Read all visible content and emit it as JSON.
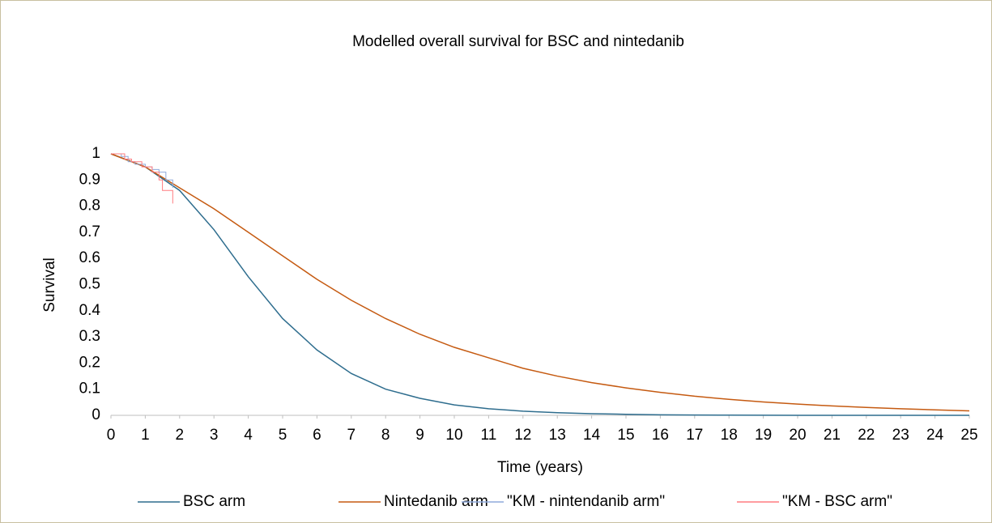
{
  "chart_data": {
    "type": "line",
    "title": "Modelled overall survival for BSC and nintedanib",
    "x_label": "Time (years)",
    "y_label": "Survival",
    "xlim": [
      0,
      25
    ],
    "xticks": [
      0,
      1,
      2,
      3,
      4,
      5,
      6,
      7,
      8,
      9,
      10,
      11,
      12,
      13,
      14,
      15,
      16,
      17,
      18,
      19,
      20,
      21,
      22,
      23,
      24,
      25
    ],
    "ylim": [
      0,
      1
    ],
    "yticks": [
      0,
      0.1,
      0.2,
      0.3,
      0.4,
      0.5,
      0.6,
      0.7,
      0.8,
      0.9,
      1
    ],
    "grid": false,
    "legend": "bottom",
    "series": [
      {
        "name": "BSC arm",
        "color": "#2e6d8e",
        "x": [
          0,
          1,
          2,
          3,
          4,
          5,
          6,
          7,
          8,
          9,
          10,
          11,
          12,
          13,
          14,
          15,
          16,
          17,
          18,
          19,
          20,
          21,
          22,
          23,
          24,
          25
        ],
        "values": [
          1,
          0.95,
          0.86,
          0.71,
          0.53,
          0.37,
          0.25,
          0.16,
          0.1,
          0.065,
          0.04,
          0.025,
          0.016,
          0.01,
          0.006,
          0.004,
          0.002,
          0.001,
          0.0007,
          0.0004,
          0.0002,
          0.0001,
          0.0001,
          0,
          0,
          0
        ]
      },
      {
        "name": "Nintedanib arm",
        "color": "#c55a11",
        "x": [
          0,
          1,
          2,
          3,
          4,
          5,
          6,
          7,
          8,
          9,
          10,
          11,
          12,
          13,
          14,
          15,
          16,
          17,
          18,
          19,
          20,
          21,
          22,
          23,
          24,
          25
        ],
        "values": [
          1,
          0.95,
          0.87,
          0.79,
          0.7,
          0.61,
          0.52,
          0.44,
          0.37,
          0.31,
          0.26,
          0.22,
          0.18,
          0.15,
          0.125,
          0.105,
          0.088,
          0.073,
          0.061,
          0.051,
          0.043,
          0.036,
          0.03,
          0.025,
          0.021,
          0.017
        ]
      },
      {
        "name": "\"KM - nintendanib arm\"",
        "color": "#8faadc",
        "x": [
          0,
          0.3,
          0.3,
          0.5,
          0.5,
          0.7,
          0.7,
          1.0,
          1.0,
          1.2,
          1.2,
          1.4,
          1.4,
          1.6,
          1.6,
          1.8,
          1.8
        ],
        "values": [
          1,
          1,
          0.99,
          0.99,
          0.97,
          0.97,
          0.96,
          0.96,
          0.95,
          0.95,
          0.94,
          0.94,
          0.93,
          0.93,
          0.9,
          0.9,
          0.87
        ]
      },
      {
        "name": "\"KM - BSC arm\"",
        "color": "#ff7c80",
        "x": [
          0,
          0.4,
          0.4,
          0.6,
          0.6,
          0.9,
          0.9,
          1.2,
          1.2,
          1.4,
          1.4,
          1.5,
          1.5,
          1.7,
          1.7,
          1.8,
          1.8
        ],
        "values": [
          1,
          1,
          0.98,
          0.98,
          0.97,
          0.97,
          0.95,
          0.95,
          0.93,
          0.93,
          0.9,
          0.9,
          0.86,
          0.86,
          0.86,
          0.86,
          0.81
        ]
      }
    ]
  }
}
